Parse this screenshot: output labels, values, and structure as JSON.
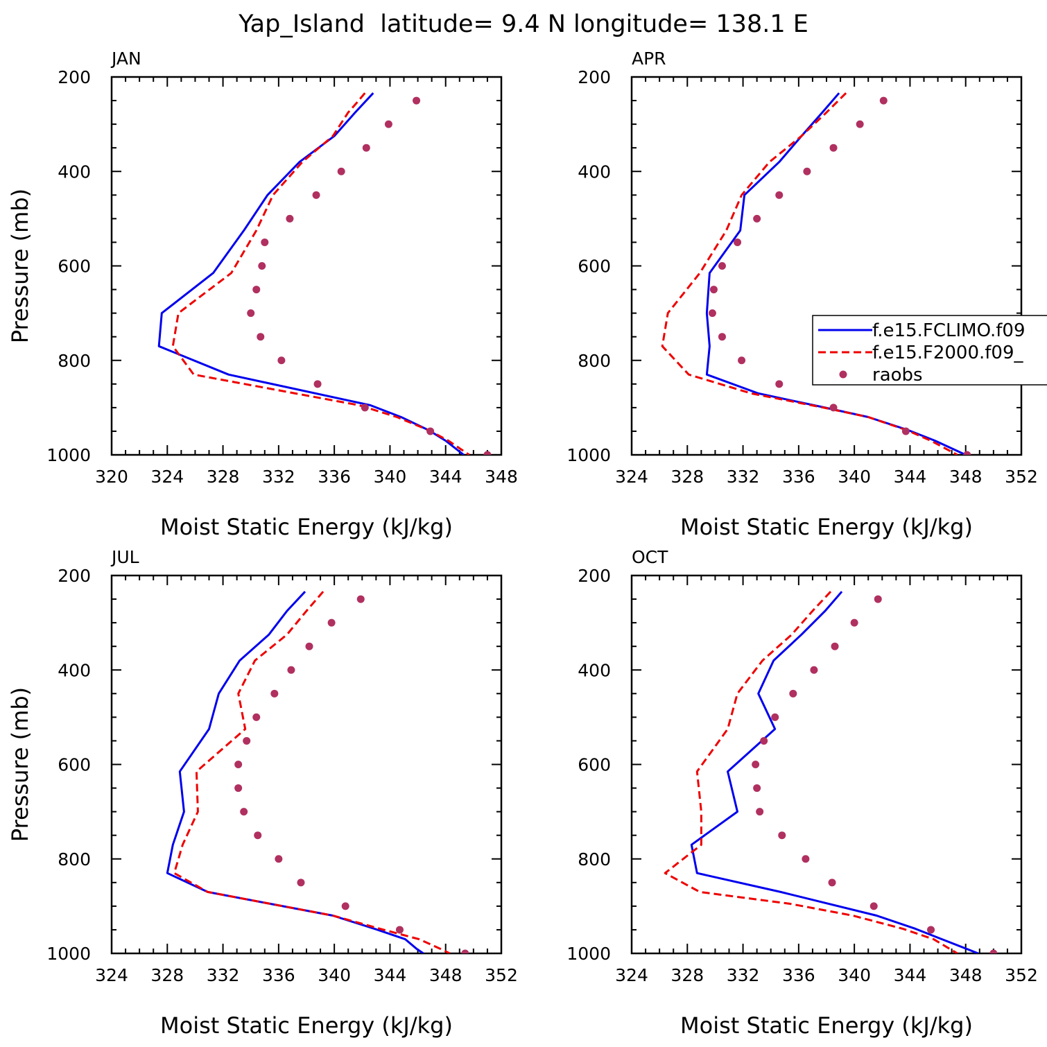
{
  "figure": {
    "title": "Yap_Island  latitude= 9.4 N longitude= 138.1 E"
  },
  "colors": {
    "fclimo": "#0000ee",
    "f2000": "#ee0000",
    "raobs": "#b03060",
    "axis": "#000000"
  },
  "legend": {
    "panel": 1,
    "placement": "right, overlapping APR panel (clipped)",
    "entries": [
      {
        "key": "fclimo",
        "label": "f.e15.FCLIMO.f09",
        "style": "solid"
      },
      {
        "key": "f2000",
        "label": "f.e15.F2000.f09_",
        "style": "dashed"
      },
      {
        "key": "raobs",
        "label": "raobs",
        "style": "dot"
      }
    ]
  },
  "chart_data": [
    {
      "type": "line",
      "panel_label": "JAN",
      "xlabel": "Moist Static Energy (kJ/kg)",
      "ylabel": "Pressure (mb)",
      "xlim": [
        320,
        348
      ],
      "ylim": [
        1000,
        200
      ],
      "x_ticks": [
        320,
        324,
        328,
        332,
        336,
        340,
        344,
        348
      ],
      "y_ticks": [
        200,
        400,
        600,
        800,
        1000
      ],
      "series": [
        {
          "key": "fclimo",
          "style": "solid",
          "p": [
            234,
            275,
            325,
            380,
            450,
            525,
            615,
            700,
            770,
            830,
            895,
            920,
            948,
            970,
            1000
          ],
          "x": [
            338.8,
            337.5,
            336.0,
            333.5,
            331.2,
            329.5,
            327.3,
            323.6,
            323.4,
            328.4,
            338.6,
            340.8,
            342.8,
            344.0,
            345.3
          ]
        },
        {
          "key": "f2000",
          "style": "dashed",
          "p": [
            234,
            255,
            275,
            325,
            380,
            450,
            525,
            615,
            700,
            770,
            830,
            895,
            920,
            948,
            970,
            1000
          ],
          "x": [
            338.2,
            337.6,
            337.0,
            335.9,
            333.7,
            331.6,
            330.4,
            328.6,
            324.8,
            324.4,
            325.9,
            337.8,
            340.5,
            342.8,
            344.2,
            345.7
          ]
        },
        {
          "key": "raobs",
          "style": "dot",
          "p": [
            250,
            300,
            350,
            400,
            450,
            500,
            550,
            600,
            650,
            700,
            750,
            800,
            850,
            900,
            950,
            1000
          ],
          "x": [
            341.9,
            339.9,
            338.3,
            336.5,
            334.7,
            332.8,
            331.0,
            330.8,
            330.4,
            330.0,
            330.7,
            332.2,
            334.8,
            338.2,
            342.9,
            347.0
          ]
        }
      ]
    },
    {
      "type": "line",
      "panel_label": "APR",
      "xlabel": "Moist Static Energy (kJ/kg)",
      "ylabel": "",
      "xlim": [
        324,
        352
      ],
      "ylim": [
        1000,
        200
      ],
      "x_ticks": [
        324,
        328,
        332,
        336,
        340,
        344,
        348,
        352
      ],
      "y_ticks": [
        200,
        400,
        600,
        800,
        1000
      ],
      "series": [
        {
          "key": "fclimo",
          "style": "solid",
          "p": [
            234,
            275,
            325,
            380,
            450,
            525,
            615,
            700,
            770,
            830,
            870,
            900,
            920,
            948,
            970,
            1000
          ],
          "x": [
            338.9,
            337.7,
            336.2,
            334.6,
            332.1,
            331.8,
            329.6,
            329.4,
            329.6,
            329.4,
            333.1,
            337.9,
            341.0,
            343.9,
            345.8,
            348.0
          ]
        },
        {
          "key": "f2000",
          "style": "dashed",
          "p": [
            234,
            275,
            325,
            380,
            450,
            525,
            615,
            700,
            770,
            830,
            870,
            900,
            920,
            948,
            970,
            1000
          ],
          "x": [
            339.4,
            338.0,
            336.2,
            333.9,
            331.9,
            330.8,
            328.9,
            326.6,
            326.2,
            328.1,
            332.6,
            337.8,
            341.0,
            343.8,
            345.5,
            347.4
          ]
        },
        {
          "key": "raobs",
          "style": "dot",
          "p": [
            250,
            300,
            350,
            400,
            450,
            500,
            550,
            600,
            650,
            700,
            750,
            800,
            850,
            900,
            950,
            1000
          ],
          "x": [
            342.1,
            340.4,
            338.5,
            336.6,
            334.6,
            333.0,
            331.6,
            330.5,
            329.9,
            329.8,
            330.5,
            331.9,
            334.6,
            338.5,
            343.7,
            348.1
          ]
        }
      ]
    },
    {
      "type": "line",
      "panel_label": "JUL",
      "xlabel": "Moist Static Energy (kJ/kg)",
      "ylabel": "Pressure (mb)",
      "xlim": [
        324,
        352
      ],
      "ylim": [
        1000,
        200
      ],
      "x_ticks": [
        324,
        328,
        332,
        336,
        340,
        344,
        348,
        352
      ],
      "y_ticks": [
        200,
        400,
        600,
        800,
        1000
      ],
      "series": [
        {
          "key": "fclimo",
          "style": "solid",
          "p": [
            234,
            275,
            325,
            380,
            450,
            525,
            615,
            700,
            770,
            830,
            870,
            920,
            948,
            970,
            990,
            1000
          ],
          "x": [
            337.9,
            336.6,
            335.3,
            333.2,
            331.7,
            331.0,
            328.9,
            329.2,
            328.4,
            328.0,
            330.9,
            339.9,
            342.9,
            345.1,
            345.9,
            346.4
          ]
        },
        {
          "key": "f2000",
          "style": "dashed",
          "p": [
            234,
            275,
            325,
            380,
            450,
            525,
            615,
            700,
            770,
            830,
            870,
            920,
            948,
            970,
            990,
            1000
          ],
          "x": [
            339.2,
            338.0,
            336.6,
            334.3,
            333.1,
            333.6,
            330.1,
            330.2,
            329.1,
            328.5,
            330.9,
            339.9,
            343.3,
            346.1,
            347.6,
            348.3
          ]
        },
        {
          "key": "raobs",
          "style": "dot",
          "p": [
            250,
            300,
            350,
            400,
            450,
            500,
            550,
            600,
            650,
            700,
            750,
            800,
            850,
            900,
            950,
            1000
          ],
          "x": [
            341.9,
            339.8,
            338.2,
            336.9,
            335.7,
            334.4,
            333.7,
            333.1,
            333.1,
            333.5,
            334.5,
            336.0,
            337.6,
            340.8,
            344.7,
            349.4
          ]
        }
      ]
    },
    {
      "type": "line",
      "panel_label": "OCT",
      "xlabel": "Moist Static Energy (kJ/kg)",
      "ylabel": "",
      "xlim": [
        324,
        352
      ],
      "ylim": [
        1000,
        200
      ],
      "x_ticks": [
        324,
        328,
        332,
        336,
        340,
        344,
        348,
        352
      ],
      "y_ticks": [
        200,
        400,
        600,
        800,
        1000
      ],
      "series": [
        {
          "key": "fclimo",
          "style": "solid",
          "p": [
            234,
            275,
            325,
            380,
            450,
            525,
            615,
            700,
            770,
            830,
            870,
            920,
            948,
            970,
            1000
          ],
          "x": [
            339.1,
            337.9,
            336.2,
            334.2,
            333.1,
            334.3,
            330.9,
            331.6,
            328.3,
            328.7,
            334.7,
            341.6,
            344.4,
            346.3,
            348.9
          ]
        },
        {
          "key": "f2000",
          "style": "dashed",
          "p": [
            234,
            275,
            325,
            380,
            450,
            525,
            615,
            700,
            770,
            830,
            870,
            895,
            920,
            948,
            970,
            1000
          ],
          "x": [
            338.3,
            337.0,
            335.5,
            333.4,
            331.6,
            330.9,
            328.7,
            329.0,
            329.0,
            326.4,
            328.9,
            335.4,
            339.9,
            343.5,
            345.7,
            347.4
          ]
        },
        {
          "key": "raobs",
          "style": "dot",
          "p": [
            250,
            300,
            350,
            400,
            450,
            500,
            550,
            600,
            650,
            700,
            750,
            800,
            850,
            900,
            950,
            1000
          ],
          "x": [
            341.7,
            340.0,
            338.6,
            337.1,
            335.6,
            334.3,
            333.5,
            332.9,
            333.0,
            333.2,
            334.8,
            336.5,
            338.4,
            341.4,
            345.5,
            350.0
          ]
        }
      ]
    }
  ]
}
